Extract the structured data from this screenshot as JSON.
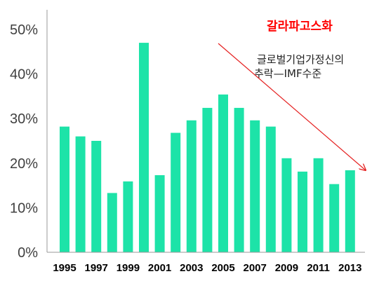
{
  "chart_data": {
    "type": "bar",
    "categories": [
      "1995",
      "1996",
      "1997",
      "1998",
      "1999",
      "2000",
      "2001",
      "2002",
      "2003",
      "2004",
      "2005",
      "2006",
      "2007",
      "2008",
      "2009",
      "2010",
      "2011",
      "2012",
      "2013"
    ],
    "x_tick_labels": [
      "1995",
      "1997",
      "1999",
      "2001",
      "2003",
      "2005",
      "2007",
      "2009",
      "2011",
      "2013"
    ],
    "values": [
      28.2,
      26.0,
      25.0,
      13.3,
      15.9,
      47.0,
      17.3,
      26.8,
      29.6,
      32.4,
      35.4,
      32.4,
      29.6,
      28.2,
      21.1,
      18.1,
      21.1,
      15.3,
      18.4
    ],
    "ylim": [
      0,
      50
    ],
    "y_ticks": [
      "0%",
      "10%",
      "20%",
      "30%",
      "40%",
      "50%"
    ],
    "bar_color": "#1de3a8",
    "grid": false,
    "title": "",
    "xlabel": "",
    "ylabel": "",
    "annotations": {
      "headline": "갈라파고스화",
      "headline_color": "#ff0000",
      "note_line1": "글로벌기업가정신의",
      "note_line2": "추락—IMF수준",
      "arrow_color": "#e52222"
    }
  }
}
